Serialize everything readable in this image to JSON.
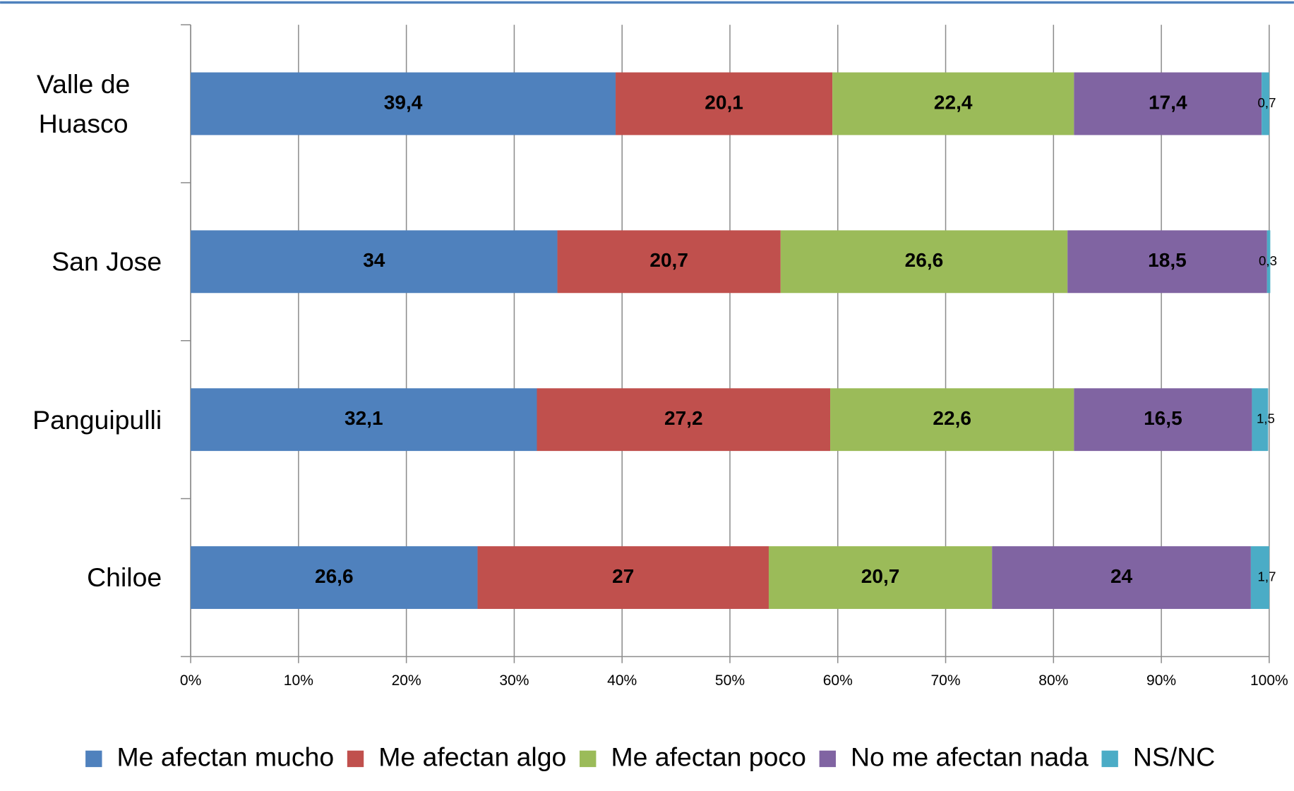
{
  "chart_data": {
    "type": "stacked_bar_horizontal",
    "categories": [
      "Valle de Huasco",
      "San Jose",
      "Panguipulli",
      "Chiloe"
    ],
    "series": [
      {
        "name": "Me afectan mucho",
        "color": "#4f81bd",
        "values": [
          39.4,
          34,
          32.1,
          26.6
        ],
        "value_labels": [
          "39,4",
          "34",
          "32,1",
          "26,6"
        ]
      },
      {
        "name": "Me afectan algo",
        "color": "#c0504d",
        "values": [
          20.1,
          20.7,
          27.2,
          27
        ],
        "value_labels": [
          "20,1",
          "20,7",
          "27,2",
          "27"
        ]
      },
      {
        "name": "Me afectan poco",
        "color": "#9bbb59",
        "values": [
          22.4,
          26.6,
          22.6,
          20.7
        ],
        "value_labels": [
          "22,4",
          "26,6",
          "22,6",
          "20,7"
        ]
      },
      {
        "name": "No me afectan nada",
        "color": "#8064a2",
        "values": [
          17.4,
          18.5,
          16.5,
          24
        ],
        "value_labels": [
          "17,4",
          "18,5",
          "16,5",
          "24"
        ]
      },
      {
        "name": "NS/NC",
        "color": "#4bacc6",
        "values": [
          0.7,
          0.3,
          1.5,
          1.7
        ],
        "value_labels": [
          "0,7",
          "0,3",
          "1,5",
          "1,7"
        ]
      }
    ],
    "xlim": [
      0,
      100
    ],
    "xticks": [
      {
        "value": 0,
        "label": "0%"
      },
      {
        "value": 10,
        "label": "10%"
      },
      {
        "value": 20,
        "label": "20%"
      },
      {
        "value": 30,
        "label": "30%"
      },
      {
        "value": 40,
        "label": "40%"
      },
      {
        "value": 50,
        "label": "50%"
      },
      {
        "value": 60,
        "label": "60%"
      },
      {
        "value": 70,
        "label": "70%"
      },
      {
        "value": 80,
        "label": "80%"
      },
      {
        "value": 90,
        "label": "90%"
      },
      {
        "value": 100,
        "label": "100%"
      }
    ],
    "grid": true,
    "legend": "bottom"
  }
}
